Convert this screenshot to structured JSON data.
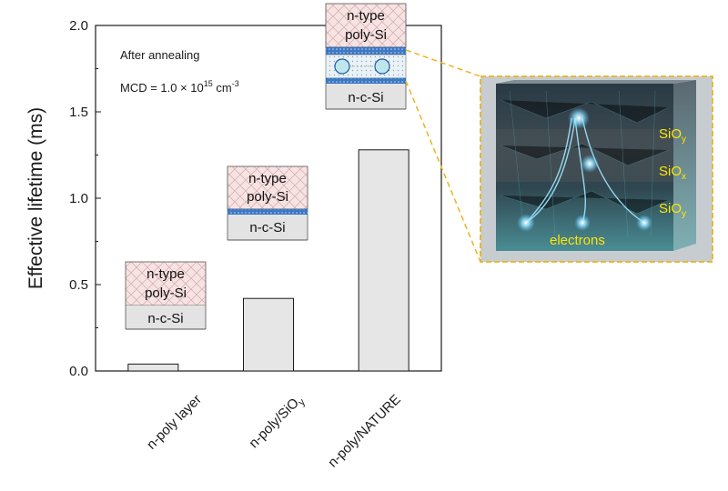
{
  "chart_data": {
    "type": "bar",
    "categories": [
      "n-poly layer",
      "n-poly/SiO",
      "n-poly/NATURE"
    ],
    "category_subscripts": [
      "",
      "y",
      ""
    ],
    "values": [
      0.04,
      0.42,
      1.28
    ],
    "ylabel": "Effective lifetime (ms)",
    "ylim": [
      0,
      2.0
    ],
    "yticks": [
      0.0,
      0.5,
      1.0,
      1.5,
      2.0
    ],
    "ytick_labels": [
      "0.0",
      "0.5",
      "1.0",
      "1.5",
      "2.0"
    ],
    "grid": false,
    "bar_color": "#e6e6e6"
  },
  "annotations": {
    "condition": "After annealing",
    "mcd_prefix": "MCD = 1.0 × 10",
    "mcd_exp": "15",
    "mcd_unit": " cm",
    "mcd_unit_exp": "-3"
  },
  "stacks": {
    "n_type": "n-type",
    "poly_si": "poly-Si",
    "n_c_si": "n-c-Si"
  },
  "render": {
    "labels": [
      "SiO",
      "SiO",
      "SiO"
    ],
    "subscripts": [
      "y",
      "x",
      "y"
    ],
    "electrons": "electrons",
    "label_color": "#ffe600",
    "frame_color": "#e8b520"
  },
  "colors": {
    "poly_fill": "#f6e3e3",
    "hatch": "#d9a8a8",
    "interlayer": "#1f5aa8",
    "csi_fill": "#e3e3e3",
    "dashed": "#e8b520"
  }
}
